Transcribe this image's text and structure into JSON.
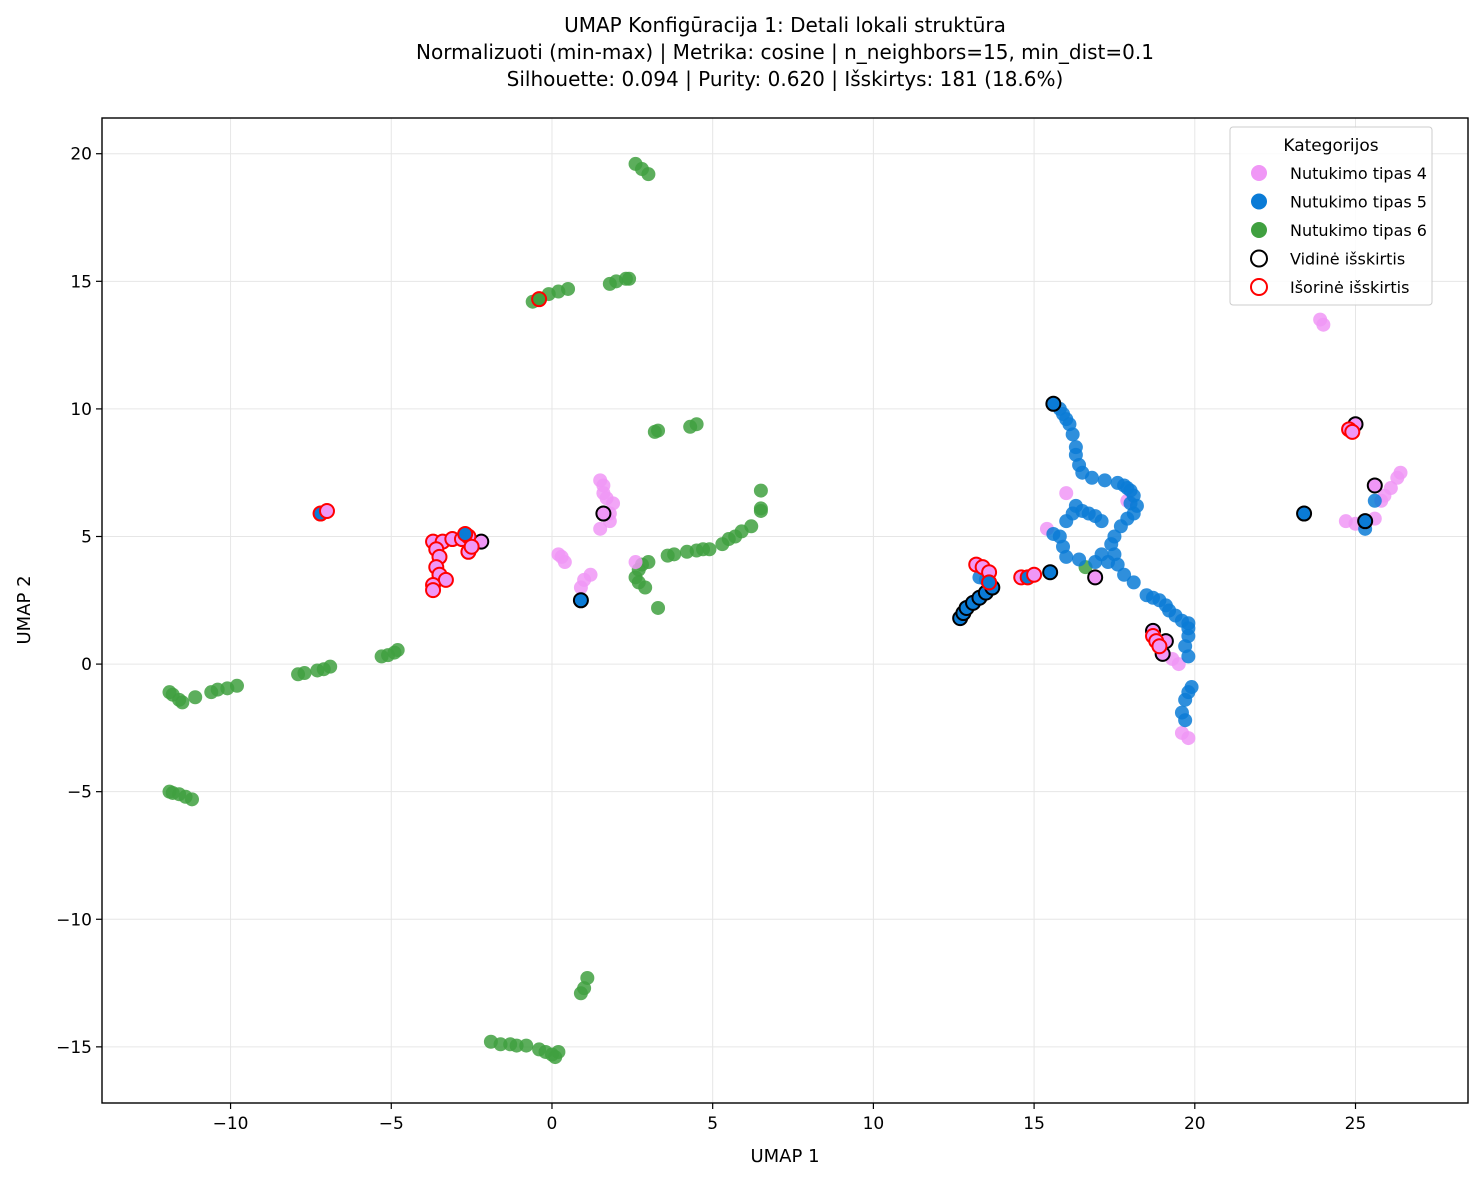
{
  "chart_data": {
    "type": "scatter",
    "title_lines": [
      "UMAP Konfigūracija 1: Detali lokali struktūra",
      "Normalizuoti (min-max) | Metrika: cosine | n_neighbors=15, min_dist=0.1",
      "Silhouette: 0.094 | Purity: 0.620 | Išskirtys: 181 (18.6%)"
    ],
    "xlabel": "UMAP 1",
    "ylabel": "UMAP 2",
    "xlim": [
      -14.0,
      28.5
    ],
    "ylim": [
      -17.2,
      21.4
    ],
    "xticks": [
      -10,
      -5,
      0,
      5,
      10,
      15,
      20,
      25
    ],
    "yticks": [
      -15,
      -10,
      -5,
      0,
      5,
      10,
      15,
      20
    ],
    "xtick_labels": [
      "−10",
      "−5",
      "0",
      "5",
      "10",
      "15",
      "20",
      "25"
    ],
    "ytick_labels": [
      "−15",
      "−10",
      "−5",
      "0",
      "5",
      "10",
      "15",
      "20"
    ],
    "grid": true,
    "legend": {
      "title": "Kategorijos",
      "placement": "top-right",
      "entries": [
        {
          "label": "Nutukimo tipas 4",
          "kind": "fill",
          "color": "#f097f6"
        },
        {
          "label": "Nutukimo tipas 5",
          "kind": "fill",
          "color": "#0a7bd6"
        },
        {
          "label": "Nutukimo tipas 6",
          "kind": "fill",
          "color": "#40a040"
        },
        {
          "label": "Vidinė išskirtis",
          "kind": "ring",
          "color": "#000000"
        },
        {
          "label": "Išorinė išskirtis",
          "kind": "ring",
          "color": "#ff0000"
        }
      ]
    },
    "colors": {
      "tipas4": "#f097f6",
      "tipas5": "#0a7bd6",
      "tipas6": "#40a040",
      "inner": "#000000",
      "outer": "#ff0000"
    },
    "series": [
      {
        "name": "Nutukimo tipas 6",
        "color": "#40a040",
        "points": [
          [
            -11.9,
            -1.1
          ],
          [
            -11.8,
            -1.2
          ],
          [
            -11.6,
            -1.4
          ],
          [
            -11.5,
            -1.5
          ],
          [
            -11.1,
            -1.3
          ],
          [
            -10.6,
            -1.1
          ],
          [
            -10.4,
            -1.0
          ],
          [
            -10.1,
            -0.95
          ],
          [
            -9.8,
            -0.85
          ],
          [
            -7.9,
            -0.4
          ],
          [
            -7.7,
            -0.35
          ],
          [
            -7.3,
            -0.25
          ],
          [
            -7.1,
            -0.2
          ],
          [
            -6.9,
            -0.1
          ],
          [
            -5.3,
            0.3
          ],
          [
            -5.1,
            0.35
          ],
          [
            -4.9,
            0.45
          ],
          [
            -4.8,
            0.55
          ],
          [
            -11.9,
            -5.0
          ],
          [
            -11.8,
            -5.05
          ],
          [
            -11.6,
            -5.1
          ],
          [
            -11.4,
            -5.2
          ],
          [
            -11.2,
            -5.3
          ],
          [
            2.6,
            19.6
          ],
          [
            2.8,
            19.4
          ],
          [
            3.0,
            19.2
          ],
          [
            1.8,
            14.9
          ],
          [
            2.0,
            15.0
          ],
          [
            2.3,
            15.1
          ],
          [
            2.4,
            15.1
          ],
          [
            -0.6,
            14.2
          ],
          [
            -0.1,
            14.5
          ],
          [
            0.2,
            14.6
          ],
          [
            0.5,
            14.7
          ],
          [
            3.2,
            9.1
          ],
          [
            3.3,
            9.15
          ],
          [
            4.3,
            9.3
          ],
          [
            4.5,
            9.4
          ],
          [
            6.5,
            6.8
          ],
          [
            6.5,
            6.1
          ],
          [
            6.5,
            6.0
          ],
          [
            6.2,
            5.4
          ],
          [
            5.9,
            5.2
          ],
          [
            5.7,
            5.0
          ],
          [
            5.5,
            4.9
          ],
          [
            5.3,
            4.7
          ],
          [
            4.9,
            4.5
          ],
          [
            4.7,
            4.5
          ],
          [
            4.5,
            4.45
          ],
          [
            4.2,
            4.4
          ],
          [
            3.8,
            4.3
          ],
          [
            3.6,
            4.25
          ],
          [
            3.0,
            4.0
          ],
          [
            2.8,
            3.9
          ],
          [
            2.7,
            3.7
          ],
          [
            2.6,
            3.4
          ],
          [
            2.7,
            3.2
          ],
          [
            2.9,
            3.0
          ],
          [
            3.3,
            2.2
          ],
          [
            0.9,
            -12.9
          ],
          [
            1.0,
            -12.7
          ],
          [
            1.1,
            -12.3
          ],
          [
            -1.9,
            -14.8
          ],
          [
            -1.6,
            -14.9
          ],
          [
            -1.3,
            -14.9
          ],
          [
            -1.1,
            -14.95
          ],
          [
            -0.8,
            -14.95
          ],
          [
            -0.4,
            -15.1
          ],
          [
            -0.2,
            -15.2
          ],
          [
            0.0,
            -15.3
          ],
          [
            0.1,
            -15.4
          ],
          [
            0.2,
            -15.2
          ],
          [
            16.6,
            3.8
          ]
        ]
      },
      {
        "name": "Nutukimo tipas 4",
        "color": "#f097f6",
        "points": [
          [
            1.5,
            7.2
          ],
          [
            1.6,
            7.0
          ],
          [
            1.6,
            6.7
          ],
          [
            1.7,
            6.5
          ],
          [
            1.9,
            6.3
          ],
          [
            1.8,
            5.9
          ],
          [
            1.5,
            5.3
          ],
          [
            1.8,
            5.6
          ],
          [
            0.2,
            4.3
          ],
          [
            0.3,
            4.2
          ],
          [
            0.4,
            4.0
          ],
          [
            2.6,
            4.0
          ],
          [
            1.2,
            3.5
          ],
          [
            1.0,
            3.3
          ],
          [
            0.9,
            3.0
          ],
          [
            23.9,
            13.5
          ],
          [
            24.0,
            13.3
          ],
          [
            24.7,
            5.6
          ],
          [
            25.0,
            5.5
          ],
          [
            25.6,
            5.7
          ],
          [
            25.8,
            6.4
          ],
          [
            25.9,
            6.6
          ],
          [
            26.1,
            6.9
          ],
          [
            26.3,
            7.3
          ],
          [
            26.4,
            7.5
          ],
          [
            15.4,
            5.3
          ],
          [
            16.0,
            6.7
          ],
          [
            17.9,
            6.4
          ],
          [
            19.6,
            -2.7
          ],
          [
            19.8,
            -2.9
          ],
          [
            19.3,
            0.2
          ],
          [
            19.5,
            0.0
          ]
        ]
      },
      {
        "name": "Nutukimo tipas 5",
        "color": "#0a7bd6",
        "points": [
          [
            15.6,
            10.2
          ],
          [
            15.8,
            10.0
          ],
          [
            15.9,
            9.8
          ],
          [
            16.0,
            9.6
          ],
          [
            16.1,
            9.4
          ],
          [
            16.2,
            9.0
          ],
          [
            16.3,
            8.5
          ],
          [
            16.3,
            8.2
          ],
          [
            16.4,
            7.8
          ],
          [
            16.5,
            7.5
          ],
          [
            16.8,
            7.3
          ],
          [
            17.2,
            7.2
          ],
          [
            17.6,
            7.1
          ],
          [
            17.8,
            7.0
          ],
          [
            17.9,
            6.9
          ],
          [
            18.0,
            6.8
          ],
          [
            18.1,
            6.6
          ],
          [
            18.0,
            6.3
          ],
          [
            18.2,
            6.2
          ],
          [
            18.1,
            5.9
          ],
          [
            17.9,
            5.7
          ],
          [
            17.7,
            5.4
          ],
          [
            17.5,
            5.0
          ],
          [
            17.4,
            4.7
          ],
          [
            17.5,
            4.3
          ],
          [
            17.6,
            3.9
          ],
          [
            16.3,
            6.2
          ],
          [
            16.5,
            6.0
          ],
          [
            16.7,
            5.9
          ],
          [
            16.9,
            5.8
          ],
          [
            17.1,
            5.6
          ],
          [
            16.2,
            5.9
          ],
          [
            16.0,
            5.6
          ],
          [
            15.6,
            5.1
          ],
          [
            15.8,
            5.0
          ],
          [
            15.9,
            4.6
          ],
          [
            16.0,
            4.2
          ],
          [
            16.4,
            4.1
          ],
          [
            16.9,
            4.0
          ],
          [
            17.1,
            4.3
          ],
          [
            17.3,
            4.0
          ],
          [
            17.8,
            3.5
          ],
          [
            18.1,
            3.2
          ],
          [
            18.5,
            2.7
          ],
          [
            18.7,
            2.6
          ],
          [
            18.9,
            2.5
          ],
          [
            19.1,
            2.3
          ],
          [
            19.2,
            2.1
          ],
          [
            19.4,
            1.9
          ],
          [
            19.6,
            1.7
          ],
          [
            19.8,
            1.6
          ],
          [
            19.8,
            1.4
          ],
          [
            19.8,
            1.1
          ],
          [
            19.7,
            0.7
          ],
          [
            19.8,
            0.3
          ],
          [
            19.9,
            -0.9
          ],
          [
            19.8,
            -1.1
          ],
          [
            19.7,
            -1.4
          ],
          [
            19.6,
            -1.9
          ],
          [
            19.7,
            -2.2
          ],
          [
            13.3,
            3.4
          ],
          [
            13.5,
            3.3
          ],
          [
            25.6,
            6.4
          ],
          [
            25.3,
            5.3
          ]
        ]
      }
    ],
    "outliers": [
      {
        "name": "Vidinė išskirtis",
        "ring": "#000000",
        "points": [
          {
            "xy": [
              1.6,
              5.9
            ],
            "fill": "#f097f6"
          },
          {
            "xy": [
              0.9,
              2.5
            ],
            "fill": "#0a7bd6"
          },
          {
            "xy": [
              -2.2,
              4.8
            ],
            "fill": "#f097f6"
          },
          {
            "xy": [
              15.6,
              10.2
            ],
            "fill": "#0a7bd6"
          },
          {
            "xy": [
              15.5,
              3.6
            ],
            "fill": "#0a7bd6"
          },
          {
            "xy": [
              16.9,
              3.4
            ],
            "fill": "#f097f6"
          },
          {
            "xy": [
              12.7,
              1.8
            ],
            "fill": "#0a7bd6"
          },
          {
            "xy": [
              12.8,
              2.0
            ],
            "fill": "#0a7bd6"
          },
          {
            "xy": [
              12.9,
              2.2
            ],
            "fill": "#0a7bd6"
          },
          {
            "xy": [
              13.1,
              2.4
            ],
            "fill": "#0a7bd6"
          },
          {
            "xy": [
              13.3,
              2.6
            ],
            "fill": "#0a7bd6"
          },
          {
            "xy": [
              13.5,
              2.8
            ],
            "fill": "#0a7bd6"
          },
          {
            "xy": [
              13.7,
              3.0
            ],
            "fill": "#0a7bd6"
          },
          {
            "xy": [
              18.7,
              1.3
            ],
            "fill": "#f097f6"
          },
          {
            "xy": [
              19.1,
              0.9
            ],
            "fill": "#f097f6"
          },
          {
            "xy": [
              19.0,
              0.4
            ],
            "fill": "#f097f6"
          },
          {
            "xy": [
              23.4,
              5.9
            ],
            "fill": "#0a7bd6"
          },
          {
            "xy": [
              25.3,
              5.6
            ],
            "fill": "#0a7bd6"
          },
          {
            "xy": [
              25.6,
              7.0
            ],
            "fill": "#f097f6"
          },
          {
            "xy": [
              25.0,
              9.4
            ],
            "fill": "#f097f6"
          }
        ]
      },
      {
        "name": "Išorinė išskirtis",
        "ring": "#ff0000",
        "points": [
          {
            "xy": [
              -0.4,
              14.3
            ],
            "fill": "#40a040"
          },
          {
            "xy": [
              -7.2,
              5.9
            ],
            "fill": "#0a7bd6"
          },
          {
            "xy": [
              -7.0,
              6.0
            ],
            "fill": "#f097f6"
          },
          {
            "xy": [
              -3.7,
              4.8
            ],
            "fill": "#f097f6"
          },
          {
            "xy": [
              -3.4,
              4.8
            ],
            "fill": "#f097f6"
          },
          {
            "xy": [
              -3.1,
              4.9
            ],
            "fill": "#f097f6"
          },
          {
            "xy": [
              -2.8,
              4.9
            ],
            "fill": "#f097f6"
          },
          {
            "xy": [
              -2.6,
              5.0
            ],
            "fill": "#f097f6"
          },
          {
            "xy": [
              -2.7,
              5.1
            ],
            "fill": "#0a7bd6"
          },
          {
            "xy": [
              -3.6,
              4.5
            ],
            "fill": "#f097f6"
          },
          {
            "xy": [
              -3.5,
              4.2
            ],
            "fill": "#f097f6"
          },
          {
            "xy": [
              -3.6,
              3.8
            ],
            "fill": "#f097f6"
          },
          {
            "xy": [
              -3.5,
              3.5
            ],
            "fill": "#f097f6"
          },
          {
            "xy": [
              -3.3,
              3.3
            ],
            "fill": "#f097f6"
          },
          {
            "xy": [
              -3.7,
              3.1
            ],
            "fill": "#f097f6"
          },
          {
            "xy": [
              -3.7,
              2.9
            ],
            "fill": "#f097f6"
          },
          {
            "xy": [
              -2.6,
              4.4
            ],
            "fill": "#f097f6"
          },
          {
            "xy": [
              -2.5,
              4.6
            ],
            "fill": "#f097f6"
          },
          {
            "xy": [
              13.2,
              3.9
            ],
            "fill": "#f097f6"
          },
          {
            "xy": [
              13.4,
              3.8
            ],
            "fill": "#f097f6"
          },
          {
            "xy": [
              13.6,
              3.6
            ],
            "fill": "#f097f6"
          },
          {
            "xy": [
              13.6,
              3.2
            ],
            "fill": "#0a7bd6"
          },
          {
            "xy": [
              14.6,
              3.4
            ],
            "fill": "#f097f6"
          },
          {
            "xy": [
              14.8,
              3.4
            ],
            "fill": "#0a7bd6"
          },
          {
            "xy": [
              15.0,
              3.5
            ],
            "fill": "#f097f6"
          },
          {
            "xy": [
              18.7,
              1.1
            ],
            "fill": "#f097f6"
          },
          {
            "xy": [
              18.8,
              0.9
            ],
            "fill": "#f097f6"
          },
          {
            "xy": [
              18.9,
              0.7
            ],
            "fill": "#f097f6"
          },
          {
            "xy": [
              24.8,
              9.2
            ],
            "fill": "#f097f6"
          },
          {
            "xy": [
              24.9,
              9.1
            ],
            "fill": "#f097f6"
          }
        ]
      }
    ]
  }
}
